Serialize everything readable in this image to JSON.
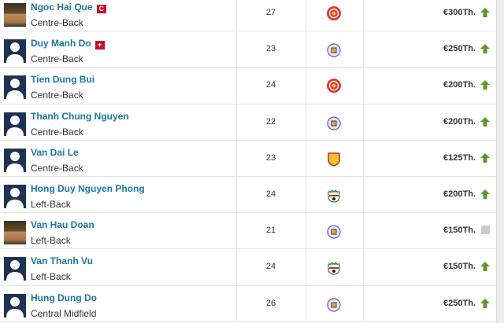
{
  "colors": {
    "name": "#1d75a3",
    "up": "#5a9a28",
    "neutral": "#cccccc",
    "badge": "#c8102e"
  },
  "players": [
    {
      "name": "Ngoc Hai Que",
      "position": "Centre-Back",
      "age": "27",
      "club": "red-crest",
      "value": "€300Th.",
      "trend": "up",
      "photo": "real",
      "badge": "captain",
      "badge_text": "C"
    },
    {
      "name": "Duy Manh Do",
      "position": "Centre-Back",
      "age": "23",
      "club": "purple-crest",
      "value": "€250Th.",
      "trend": "up",
      "photo": "silhouette",
      "badge": "injury",
      "badge_text": "+"
    },
    {
      "name": "Tien Dung Bui",
      "position": "Centre-Back",
      "age": "24",
      "club": "red-crest",
      "value": "€200Th.",
      "trend": "up",
      "photo": "silhouette"
    },
    {
      "name": "Thanh Chung Nguyen",
      "position": "Centre-Back",
      "age": "22",
      "club": "purple-crest",
      "value": "€200Th.",
      "trend": "up",
      "photo": "silhouette"
    },
    {
      "name": "Van Dai Le",
      "position": "Centre-Back",
      "age": "23",
      "club": "yellow-crest",
      "value": "€125Th.",
      "trend": "up",
      "photo": "silhouette"
    },
    {
      "name": "Hong Duy Nguyen Phong",
      "position": "Left-Back",
      "age": "24",
      "club": "green-crest",
      "value": "€200Th.",
      "trend": "up",
      "photo": "silhouette"
    },
    {
      "name": "Van Hau Doan",
      "position": "Left-Back",
      "age": "21",
      "club": "purple-crest",
      "value": "€150Th.",
      "trend": "neutral",
      "photo": "real"
    },
    {
      "name": "Van Thanh Vu",
      "position": "Left-Back",
      "age": "24",
      "club": "green-crest",
      "value": "€150Th.",
      "trend": "up",
      "photo": "silhouette"
    },
    {
      "name": "Hung Dung Do",
      "position": "Central Midfield",
      "age": "26",
      "club": "purple-crest",
      "value": "€250Th.",
      "trend": "up",
      "photo": "silhouette"
    }
  ]
}
